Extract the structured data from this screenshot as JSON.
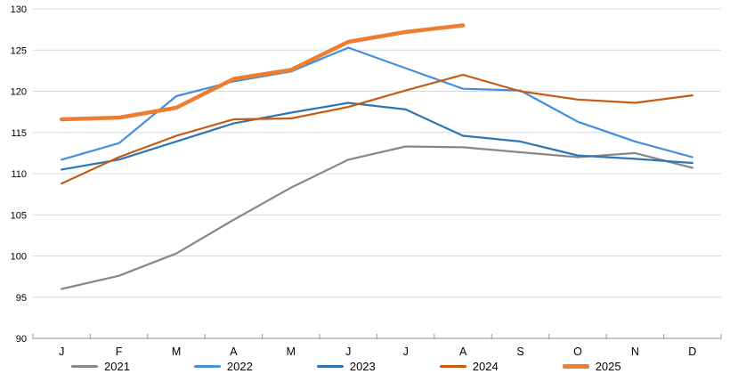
{
  "chart_data": {
    "type": "line",
    "title": "",
    "xlabel": "",
    "ylabel": "",
    "grid": "horizontal",
    "legend_position": "bottom",
    "months": [
      "J",
      "F",
      "M",
      "A",
      "M",
      "J",
      "J",
      "A",
      "S",
      "O",
      "N",
      "D"
    ],
    "y_axis": {
      "min": 90,
      "max": 130,
      "step": 5,
      "tick_labels": [
        "90",
        "95",
        "100",
        "105",
        "110",
        "115",
        "120",
        "125",
        "130"
      ]
    },
    "series": [
      {
        "name": "2021",
        "color": "#878787",
        "width": 2.2,
        "values": [
          96.0,
          97.6,
          100.3,
          104.4,
          108.3,
          111.7,
          113.3,
          113.2,
          112.6,
          112.0,
          112.5,
          110.7
        ]
      },
      {
        "name": "2022",
        "color": "#418FDE",
        "width": 2.2,
        "values": [
          111.7,
          113.7,
          119.4,
          121.2,
          122.4,
          125.3,
          122.8,
          120.3,
          120.1,
          116.3,
          113.9,
          112.0
        ]
      },
      {
        "name": "2023",
        "color": "#2E75B6",
        "width": 2.2,
        "values": [
          110.5,
          111.7,
          113.9,
          116.1,
          117.4,
          118.6,
          117.8,
          114.6,
          113.9,
          112.2,
          111.8,
          111.3
        ]
      },
      {
        "name": "2024",
        "color": "#C55A11",
        "width": 2.2,
        "values": [
          108.8,
          112.0,
          114.6,
          116.6,
          116.7,
          118.1,
          120.1,
          122.0,
          120.0,
          119.0,
          118.6,
          119.5
        ]
      },
      {
        "name": "2025",
        "color": "#ED7D31",
        "width": 4.5,
        "values": [
          116.6,
          116.8,
          118.0,
          121.5,
          122.6,
          126.0,
          127.2,
          128.0,
          null,
          null,
          null,
          null
        ]
      }
    ],
    "colors": {
      "gridline": "#D9D9D9",
      "axis_line": "#A6A6A6",
      "tick_label": "#000000"
    }
  }
}
